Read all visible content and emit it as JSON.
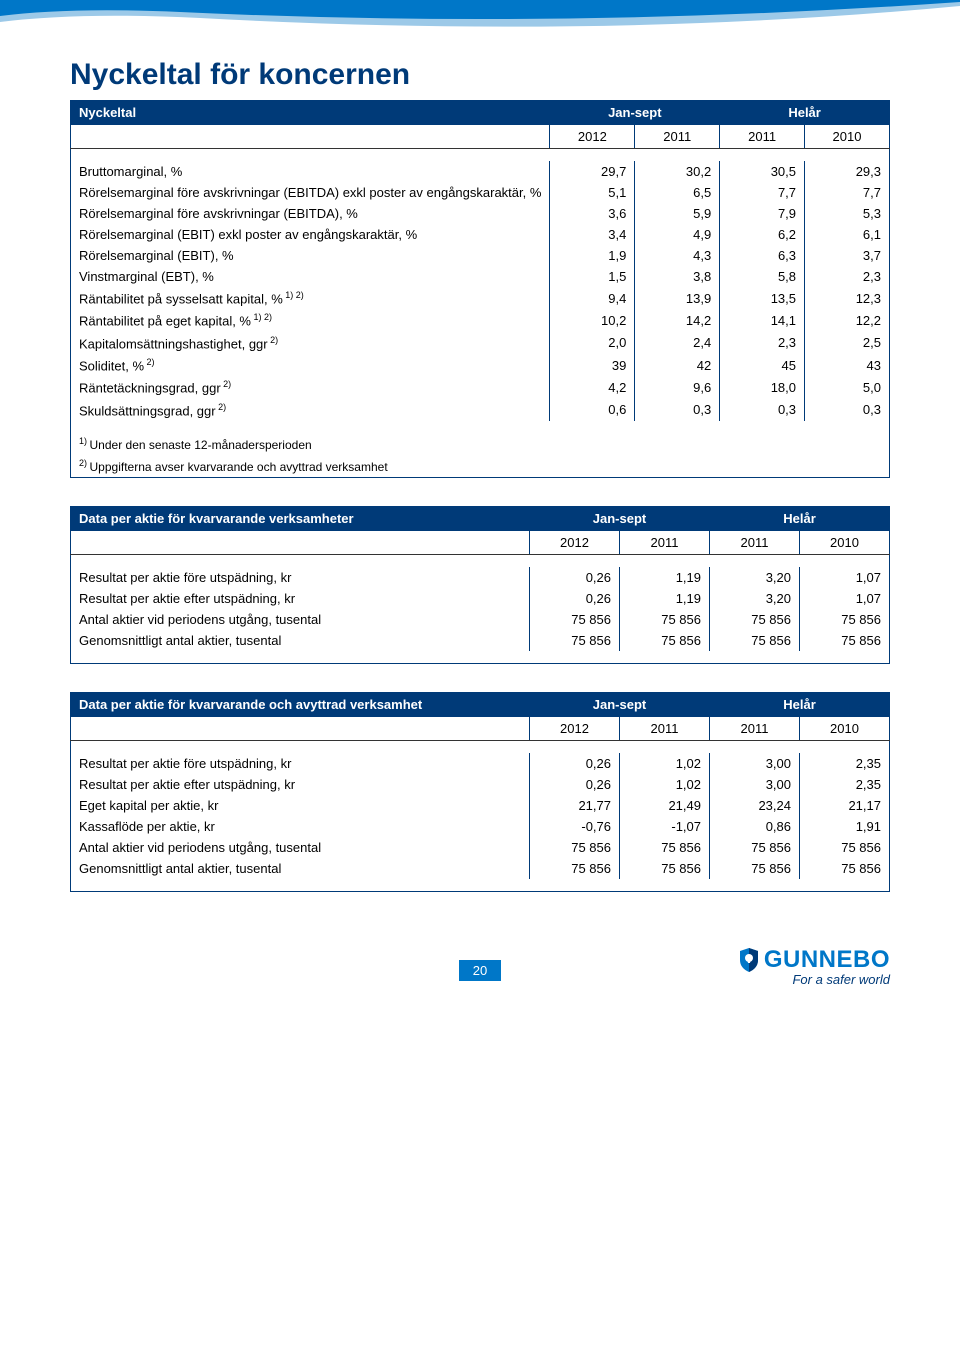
{
  "page_title": "Nyckeltal för koncernen",
  "page_number": "20",
  "logo": {
    "name": "GUNNEBO",
    "tagline": "For a safer world"
  },
  "colors": {
    "dark_blue": "#003a78",
    "light_blue": "#0077c8",
    "swoosh_light": "#9cc9e8"
  },
  "table1": {
    "title": "Nyckeltal",
    "group_headers": [
      "Jan-sept",
      "Helår"
    ],
    "col_headers": [
      "2012",
      "2011",
      "2011",
      "2010"
    ],
    "rows": [
      {
        "label": "Bruttomarginal, %",
        "v": [
          "29,7",
          "30,2",
          "30,5",
          "29,3"
        ]
      },
      {
        "label": "Rörelsemarginal före avskrivningar (EBITDA) exkl poster av engångskaraktär, %",
        "v": [
          "5,1",
          "6,5",
          "7,7",
          "7,7"
        ]
      },
      {
        "label": "Rörelsemarginal före avskrivningar (EBITDA), %",
        "v": [
          "3,6",
          "5,9",
          "7,9",
          "5,3"
        ]
      },
      {
        "label": "Rörelsemarginal (EBIT) exkl poster av engångskaraktär, %",
        "v": [
          "3,4",
          "4,9",
          "6,2",
          "6,1"
        ]
      },
      {
        "label": "Rörelsemarginal (EBIT), %",
        "v": [
          "1,9",
          "4,3",
          "6,3",
          "3,7"
        ]
      },
      {
        "label": "Vinstmarginal (EBT), %",
        "v": [
          "1,5",
          "3,8",
          "5,8",
          "2,3"
        ]
      },
      {
        "label": "Räntabilitet på sysselsatt kapital, %",
        "sup": "1) 2)",
        "v": [
          "9,4",
          "13,9",
          "13,5",
          "12,3"
        ]
      },
      {
        "label": "Räntabilitet på eget kapital, %",
        "sup": "1) 2)",
        "v": [
          "10,2",
          "14,2",
          "14,1",
          "12,2"
        ]
      },
      {
        "label": "Kapitalomsättningshastighet, ggr",
        "sup": "2)",
        "v": [
          "2,0",
          "2,4",
          "2,3",
          "2,5"
        ]
      },
      {
        "label": "Soliditet, %",
        "sup": "2)",
        "v": [
          "39",
          "42",
          "45",
          "43"
        ]
      },
      {
        "label": "Räntetäckningsgrad, ggr",
        "sup": "2)",
        "v": [
          "4,2",
          "9,6",
          "18,0",
          "5,0"
        ]
      },
      {
        "label": "Skuldsättningsgrad, ggr",
        "sup": "2)",
        "v": [
          "0,6",
          "0,3",
          "0,3",
          "0,3"
        ]
      }
    ],
    "footnotes": [
      {
        "sup": "1)",
        "text": "Under den senaste 12-månadersperioden"
      },
      {
        "sup": "2)",
        "text": "Uppgifterna avser kvarvarande och avyttrad verksamhet"
      }
    ]
  },
  "table2": {
    "title": "Data per aktie för kvarvarande verksamheter",
    "group_headers": [
      "Jan-sept",
      "Helår"
    ],
    "col_headers": [
      "2012",
      "2011",
      "2011",
      "2010"
    ],
    "rows": [
      {
        "label": "Resultat per aktie före utspädning, kr",
        "v": [
          "0,26",
          "1,19",
          "3,20",
          "1,07"
        ]
      },
      {
        "label": "Resultat per aktie efter utspädning, kr",
        "v": [
          "0,26",
          "1,19",
          "3,20",
          "1,07"
        ]
      },
      {
        "label": "Antal aktier vid periodens utgång, tusental",
        "v": [
          "75 856",
          "75 856",
          "75 856",
          "75 856"
        ]
      },
      {
        "label": "Genomsnittligt antal aktier, tusental",
        "v": [
          "75 856",
          "75 856",
          "75 856",
          "75 856"
        ]
      }
    ]
  },
  "table3": {
    "title": "Data per aktie för kvarvarande och avyttrad verksamhet",
    "group_headers": [
      "Jan-sept",
      "Helår"
    ],
    "col_headers": [
      "2012",
      "2011",
      "2011",
      "2010"
    ],
    "rows": [
      {
        "label": "Resultat per aktie före utspädning, kr",
        "v": [
          "0,26",
          "1,02",
          "3,00",
          "2,35"
        ]
      },
      {
        "label": "Resultat per aktie efter utspädning, kr",
        "v": [
          "0,26",
          "1,02",
          "3,00",
          "2,35"
        ]
      },
      {
        "label": "Eget kapital per aktie, kr",
        "v": [
          "21,77",
          "21,49",
          "23,24",
          "21,17"
        ]
      },
      {
        "label": "Kassaflöde per aktie, kr",
        "v": [
          "-0,76",
          "-1,07",
          "0,86",
          "1,91"
        ]
      },
      {
        "label": "Antal aktier vid periodens utgång, tusental",
        "v": [
          "75 856",
          "75 856",
          "75 856",
          "75 856"
        ]
      },
      {
        "label": "Genomsnittligt antal aktier, tusental",
        "v": [
          "75 856",
          "75 856",
          "75 856",
          "75 856"
        ]
      }
    ]
  }
}
